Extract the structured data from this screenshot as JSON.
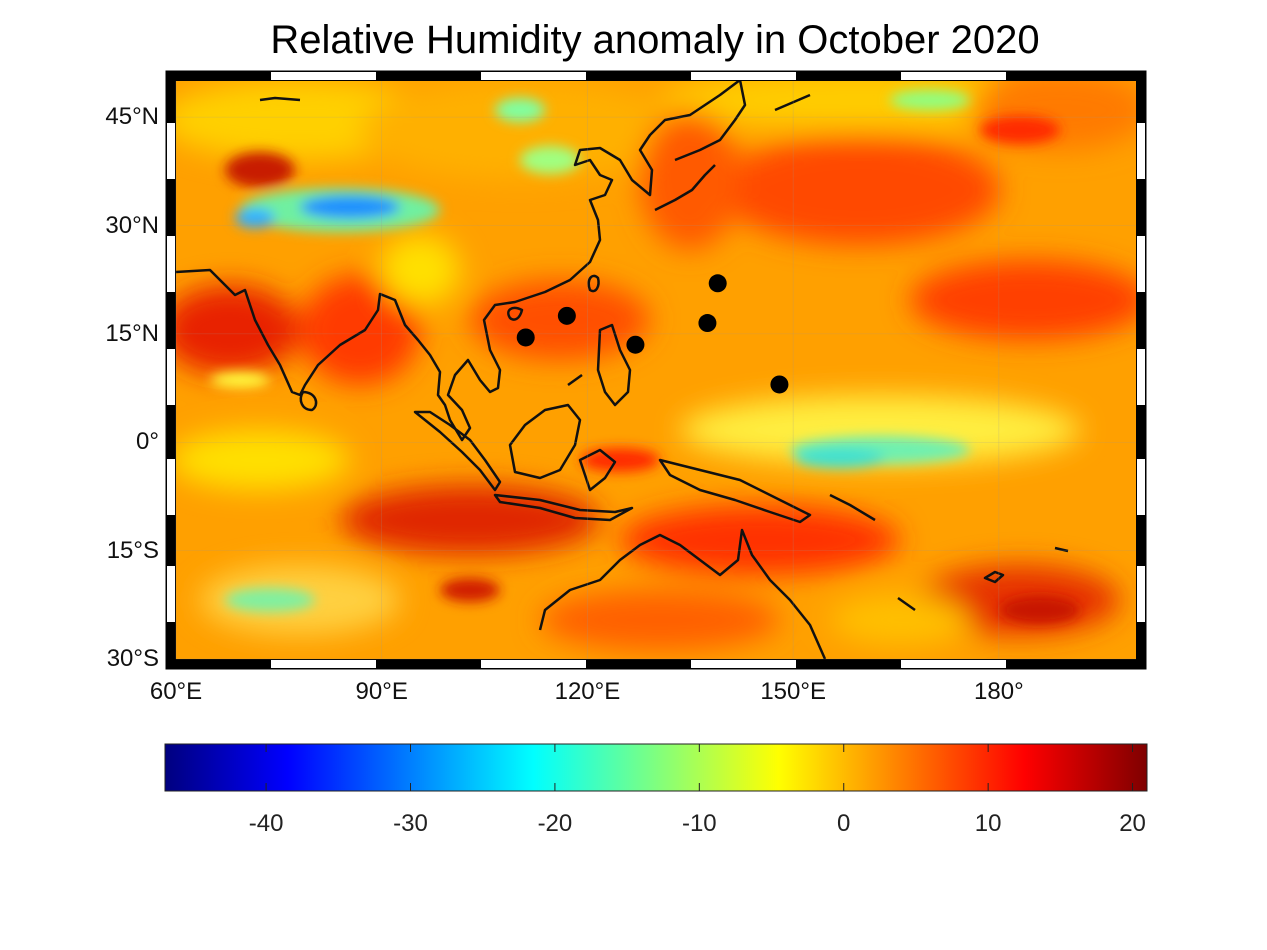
{
  "title": "Relative Humidity anomaly in October 2020",
  "map": {
    "extent": {
      "lon_min": 60,
      "lon_max": 200,
      "lat_min": -30,
      "lat_max": 50
    },
    "projection": "equirectangular",
    "frame": "alternating black/white border",
    "lat_ticks": [
      {
        "value": 45,
        "label": "45°N"
      },
      {
        "value": 30,
        "label": "30°N"
      },
      {
        "value": 15,
        "label": "15°N"
      },
      {
        "value": 0,
        "label": "0°"
      },
      {
        "value": -15,
        "label": "15°S"
      },
      {
        "value": -30,
        "label": "30°S"
      }
    ],
    "lon_ticks": [
      {
        "value": 60,
        "label": "60°E"
      },
      {
        "value": 90,
        "label": "90°E"
      },
      {
        "value": 120,
        "label": "120°E"
      },
      {
        "value": 150,
        "label": "150°E"
      },
      {
        "value": 180,
        "label": "180°"
      }
    ],
    "markers": [
      {
        "lon": 111,
        "lat": 14.5
      },
      {
        "lon": 117,
        "lat": 17.5
      },
      {
        "lon": 127,
        "lat": 13.5
      },
      {
        "lon": 137.5,
        "lat": 16.5
      },
      {
        "lon": 139,
        "lat": 22
      },
      {
        "lon": 148,
        "lat": 8
      }
    ],
    "marker_color": "#000000"
  },
  "colorbar": {
    "min": -47,
    "max": 21,
    "colormap": "jet",
    "ticks": [
      {
        "value": -40,
        "label": "-40"
      },
      {
        "value": -30,
        "label": "-30"
      },
      {
        "value": -20,
        "label": "-20"
      },
      {
        "value": -10,
        "label": "-10"
      },
      {
        "value": 0,
        "label": "0"
      },
      {
        "value": 10,
        "label": "10"
      },
      {
        "value": 20,
        "label": "20"
      }
    ]
  },
  "colors": {
    "jet": [
      "#00007f",
      "#0000ff",
      "#007fff",
      "#00ffff",
      "#7fff7f",
      "#ffff00",
      "#ff7f00",
      "#ff0000",
      "#7f0000"
    ]
  }
}
